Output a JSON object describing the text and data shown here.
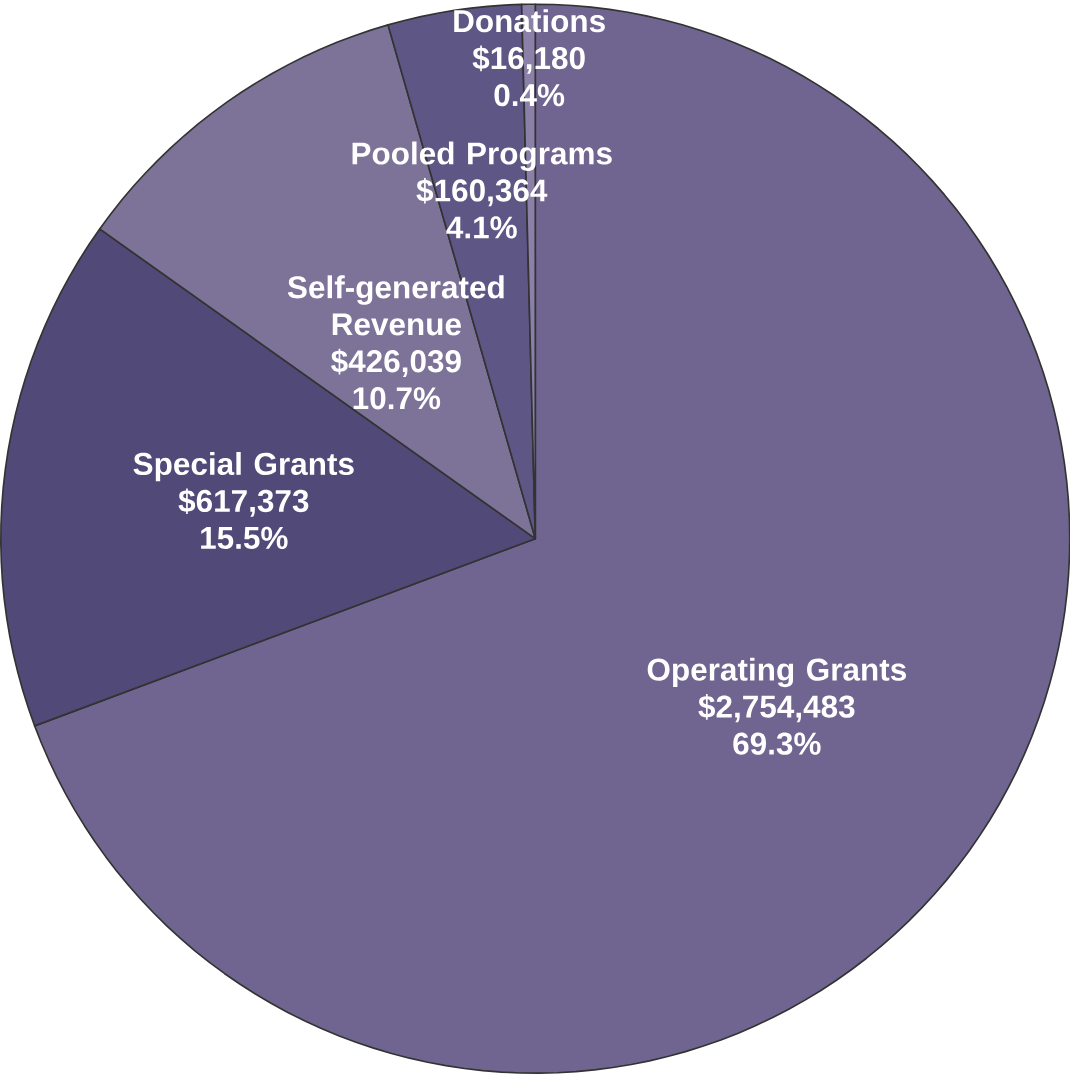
{
  "chart_data": {
    "type": "pie",
    "categories": [
      "Operating Grants",
      "Special Grants",
      "Self-generated Revenue",
      "Pooled Programs",
      "Donations"
    ],
    "values": [
      2754483,
      617373,
      426039,
      160364,
      16180
    ],
    "value_labels": [
      "$2,754,483",
      "$617,373",
      "$426,039",
      "$160,364",
      "$16,180"
    ],
    "annotations": [
      "69.3%",
      "15.5%",
      "10.7%",
      "4.1%",
      "0.4%"
    ],
    "colors": [
      "#6f6590",
      "#514a78",
      "#7d7399",
      "#5e5685",
      "#8a80a8"
    ]
  }
}
